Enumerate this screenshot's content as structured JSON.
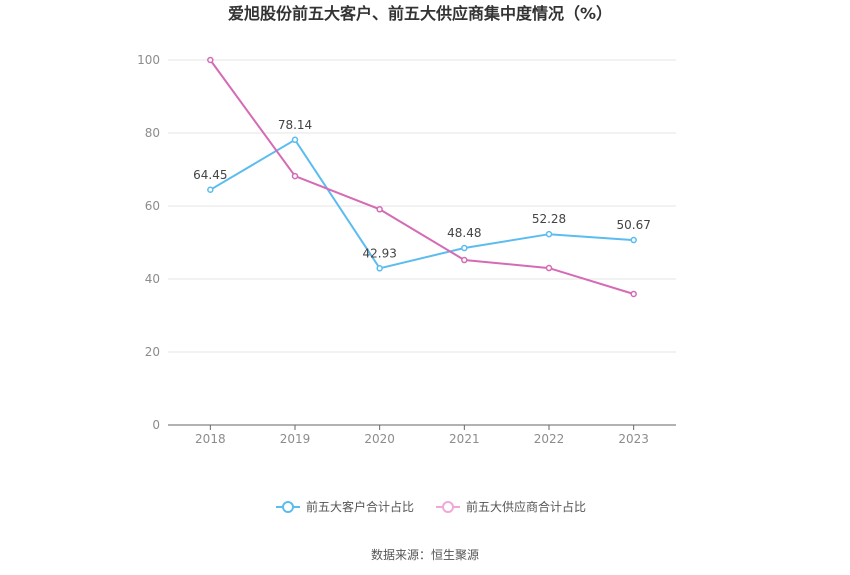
{
  "chart_data": {
    "type": "line",
    "title": "爱旭股份前五大客户、前五大供应商集中度情况（%）",
    "categories": [
      "2018",
      "2019",
      "2020",
      "2021",
      "2022",
      "2023"
    ],
    "ylim": [
      0,
      100
    ],
    "yticks": [
      0,
      20,
      40,
      60,
      80,
      100
    ],
    "grid": true,
    "legend_position": "bottom",
    "series": [
      {
        "name": "前五大客户合计占比",
        "color": "#5bbcf0",
        "values": [
          64.45,
          78.14,
          42.93,
          48.48,
          52.28,
          50.67
        ],
        "labels": [
          "64.45",
          "78.14",
          "42.93",
          "48.48",
          "52.28",
          "50.67"
        ]
      },
      {
        "name": "前五大供应商合计占比",
        "color": "#d46bb4",
        "legend_color": "#f0a8d8",
        "values": [
          100,
          68.2,
          59.1,
          45.2,
          43.0,
          35.9
        ]
      }
    ]
  },
  "source_text": "数据来源：恒生聚源"
}
